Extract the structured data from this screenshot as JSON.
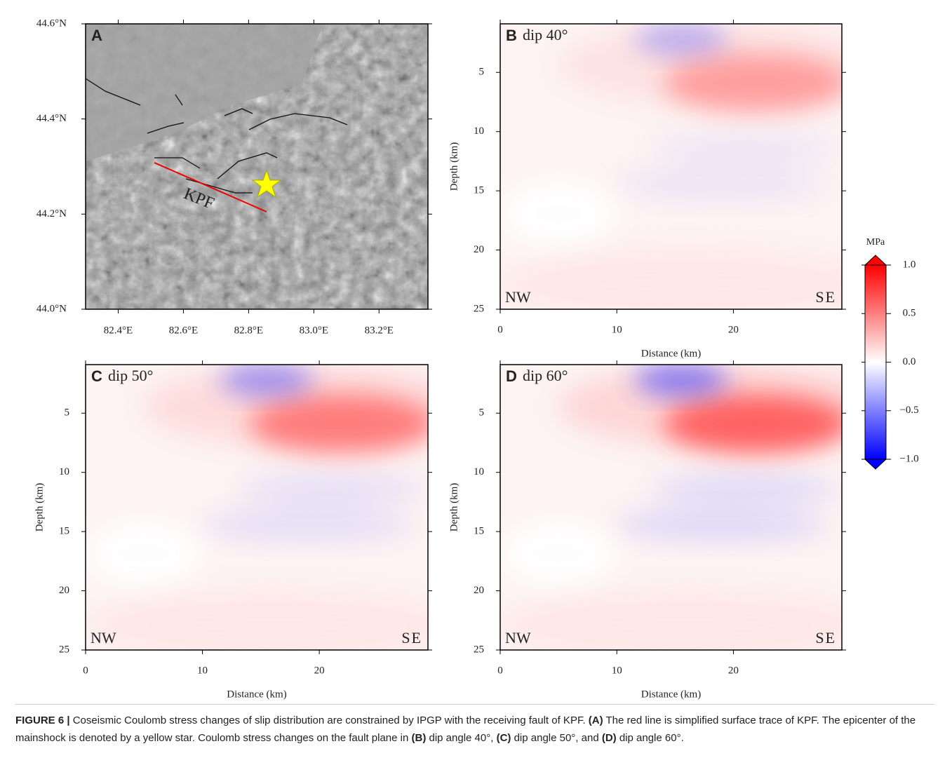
{
  "panel_a": {
    "label": "A",
    "fault_label": "KPF",
    "xlim": [
      82.3,
      83.35
    ],
    "ylim": [
      44.0,
      44.6
    ],
    "xticks": [
      {
        "value": 82.4,
        "label": "82.4°E"
      },
      {
        "value": 82.6,
        "label": "82.6°E"
      },
      {
        "value": 82.8,
        "label": "82.8°E"
      },
      {
        "value": 83.0,
        "label": "83.0°E"
      },
      {
        "value": 83.2,
        "label": "83.2°E"
      }
    ],
    "yticks": [
      {
        "value": 44.0,
        "label": "44.0°N"
      },
      {
        "value": 44.2,
        "label": "44.2°N"
      },
      {
        "value": 44.4,
        "label": "44.4°N"
      },
      {
        "value": 44.6,
        "label": "44.6°N"
      }
    ]
  },
  "panels": [
    {
      "label": "B",
      "title": "dip 40°",
      "xlabel": "Distance (km)",
      "ylabel": "Depth (km)",
      "left_label": "NW",
      "right_label": "SE",
      "xlim": [
        0,
        29.3
      ],
      "ylim": [
        0.9,
        25
      ],
      "inverted": true,
      "xticks": [
        0,
        10,
        20
      ],
      "yticks": [
        5,
        10,
        15,
        20,
        25
      ]
    },
    {
      "label": "C",
      "title": "dip 50°",
      "xlabel": "Distance (km)",
      "ylabel": "Depth (km)",
      "left_label": "NW",
      "right_label": "SE",
      "xlim": [
        0,
        29.3
      ],
      "ylim": [
        0.9,
        25
      ],
      "inverted": true,
      "xticks": [
        0,
        10,
        20
      ],
      "yticks": [
        5,
        10,
        15,
        20,
        25
      ]
    },
    {
      "label": "D",
      "title": "dip 60°",
      "xlabel": "Distance (km)",
      "ylabel": "Depth (km)",
      "left_label": "NW",
      "right_label": "SE",
      "xlim": [
        0,
        29.3
      ],
      "ylim": [
        0.9,
        25
      ],
      "inverted": true,
      "xticks": [
        0,
        10,
        20
      ],
      "yticks": [
        5,
        10,
        15,
        20,
        25
      ]
    }
  ],
  "colorbar": {
    "label": "MPa",
    "lim": [
      -1,
      1
    ],
    "ticks": [
      {
        "value": 1,
        "label": "1.0"
      },
      {
        "value": 0.5,
        "label": "0.5"
      },
      {
        "value": 0,
        "label": "0.0"
      },
      {
        "value": -0.5,
        "label": "−0.5"
      },
      {
        "value": -1,
        "label": "−1.0"
      }
    ]
  },
  "caption": [
    "FIGURE 6 |",
    " Coseismic Coulomb stress changes of slip distribution are constrained by IPGP with the receiving fault of KPF. ",
    "(A)",
    " The red line is simplified surface trace of KPF. The epicenter of the mainshock is denoted by a yellow star. Coulomb stress changes on the fault plane in ",
    "(B)",
    " dip angle 40°, ",
    "(C)",
    " dip angle 50°, and ",
    "(D)",
    " dip angle 60°."
  ]
}
